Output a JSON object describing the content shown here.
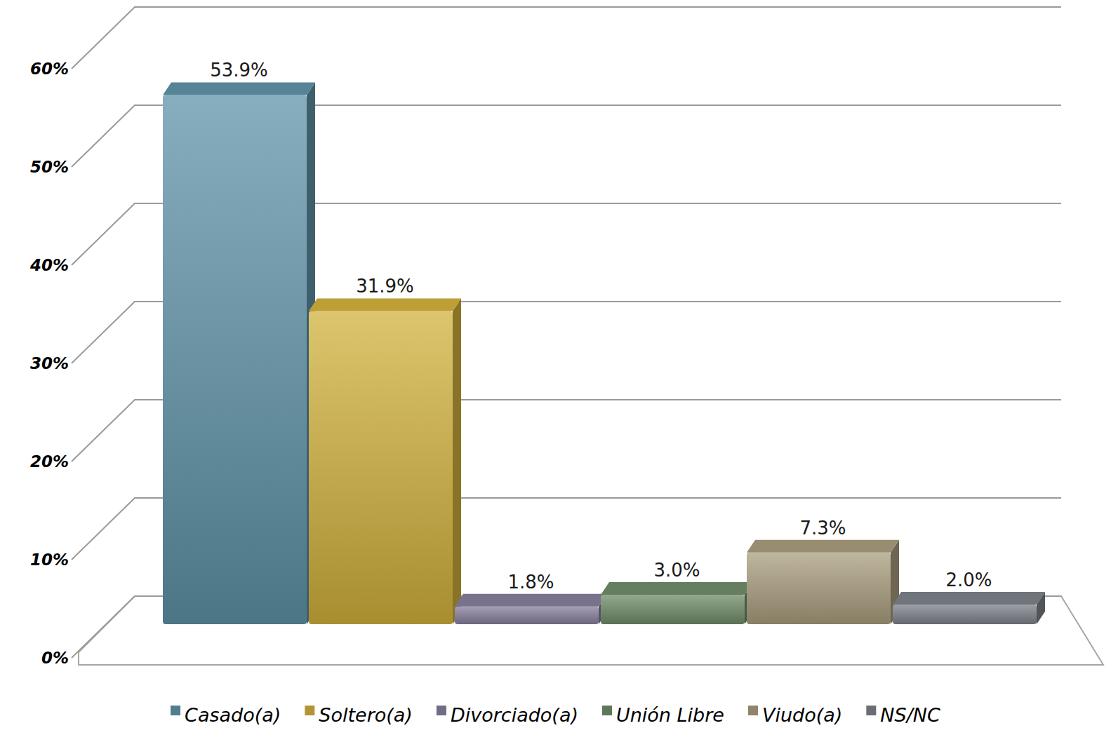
{
  "chart_data": {
    "type": "bar",
    "categories": [
      "Casado(a)",
      "Soltero(a)",
      "Divorciado(a)",
      "Unión Libre",
      "Viudo(a)",
      "NS/NC"
    ],
    "values": [
      53.9,
      31.9,
      1.8,
      3.0,
      7.3,
      2.0
    ],
    "value_labels": [
      "53.9%",
      "31.9%",
      "1.8%",
      "3.0%",
      "7.3%",
      "2.0%"
    ],
    "colors": [
      "#5f93a8",
      "#d2b13c",
      "#857f9c",
      "#6f8c69",
      "#a99d7e",
      "#7c8189"
    ],
    "ylim": [
      0,
      60
    ],
    "yticks": [
      {
        "value": 0,
        "label": "0%"
      },
      {
        "value": 10,
        "label": "10%"
      },
      {
        "value": 20,
        "label": "20%"
      },
      {
        "value": 30,
        "label": "30%"
      },
      {
        "value": 40,
        "label": "40%"
      },
      {
        "value": 50,
        "label": "50%"
      },
      {
        "value": 60,
        "label": "60%"
      }
    ],
    "grid": true,
    "data_labels": true,
    "legend": "bottom",
    "tick_labels": "y"
  }
}
